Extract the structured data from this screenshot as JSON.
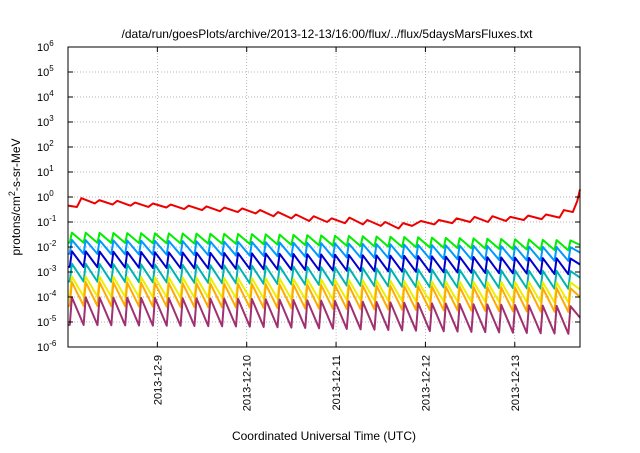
{
  "chart_data": {
    "type": "line",
    "title": "/data/run/goesPlots/archive/2013-12-13/16:00/flux/../flux/5daysMarsFluxes.txt",
    "xlabel": "Coordinated Universal Time (UTC)",
    "ylabel": {
      "prefix": "protons/cm",
      "sup": "2",
      "suffix": "-s-sr-MeV"
    },
    "xaxis": {
      "min": 0,
      "max": 5.73,
      "ticks": [
        {
          "x": 1.0,
          "label": "2013-12-9"
        },
        {
          "x": 2.0,
          "label": "2013-12-10"
        },
        {
          "x": 3.0,
          "label": "2013-12-11"
        },
        {
          "x": 4.0,
          "label": "2013-12-12"
        },
        {
          "x": 5.0,
          "label": "2013-12-13"
        }
      ]
    },
    "yaxis": {
      "scale": "log",
      "min_exp": -6,
      "max_exp": 6,
      "tick_exponents": [
        -6,
        -5,
        -4,
        -3,
        -2,
        -1,
        0,
        1,
        2,
        3,
        4,
        5,
        6
      ],
      "tick_base": "10"
    },
    "grid": true,
    "series": [
      {
        "color": "#ee0000",
        "width": 2,
        "points": [
          [
            0,
            0.45
          ],
          [
            0.1,
            0.4
          ],
          [
            0.15,
            0.9
          ],
          [
            0.3,
            0.55
          ],
          [
            0.35,
            0.75
          ],
          [
            0.5,
            0.5
          ],
          [
            0.55,
            0.7
          ],
          [
            0.7,
            0.45
          ],
          [
            0.75,
            0.6
          ],
          [
            0.9,
            0.4
          ],
          [
            0.95,
            0.55
          ],
          [
            1.1,
            0.38
          ],
          [
            1.15,
            0.5
          ],
          [
            1.3,
            0.33
          ],
          [
            1.35,
            0.45
          ],
          [
            1.5,
            0.3
          ],
          [
            1.55,
            0.42
          ],
          [
            1.7,
            0.27
          ],
          [
            1.75,
            0.38
          ],
          [
            1.9,
            0.25
          ],
          [
            1.95,
            0.35
          ],
          [
            2.1,
            0.22
          ],
          [
            2.15,
            0.3
          ],
          [
            2.3,
            0.17
          ],
          [
            2.35,
            0.25
          ],
          [
            2.5,
            0.14
          ],
          [
            2.55,
            0.2
          ],
          [
            2.7,
            0.11
          ],
          [
            2.75,
            0.17
          ],
          [
            2.9,
            0.1
          ],
          [
            2.95,
            0.14
          ],
          [
            3.1,
            0.09
          ],
          [
            3.15,
            0.15
          ],
          [
            3.3,
            0.08
          ],
          [
            3.35,
            0.12
          ],
          [
            3.5,
            0.07
          ],
          [
            3.55,
            0.1
          ],
          [
            3.7,
            0.055
          ],
          [
            3.75,
            0.09
          ],
          [
            3.85,
            0.07
          ],
          [
            3.95,
            0.11
          ],
          [
            4.1,
            0.08
          ],
          [
            4.15,
            0.12
          ],
          [
            4.3,
            0.09
          ],
          [
            4.35,
            0.14
          ],
          [
            4.5,
            0.1
          ],
          [
            4.55,
            0.16
          ],
          [
            4.7,
            0.1
          ],
          [
            4.75,
            0.17
          ],
          [
            4.9,
            0.11
          ],
          [
            4.95,
            0.16
          ],
          [
            5.1,
            0.12
          ],
          [
            5.15,
            0.18
          ],
          [
            5.3,
            0.13
          ],
          [
            5.35,
            0.2
          ],
          [
            5.5,
            0.15
          ],
          [
            5.55,
            0.3
          ],
          [
            5.65,
            0.25
          ],
          [
            5.7,
            0.7
          ],
          [
            5.73,
            2.0
          ]
        ]
      },
      {
        "color": "#00ee00",
        "width": 2,
        "period": 0.155,
        "start": 0.02,
        "trend": [
          [
            0,
            0.025
          ],
          [
            2,
            0.022
          ],
          [
            4,
            0.016
          ],
          [
            5.73,
            0.012
          ]
        ],
        "peak_factor": 1.5,
        "trough_factor": 0.6
      },
      {
        "color": "#0099ff",
        "width": 2,
        "period": 0.155,
        "start": 0.02,
        "trend": [
          [
            0,
            0.012
          ],
          [
            2,
            0.01
          ],
          [
            4,
            0.0075
          ],
          [
            5.73,
            0.006
          ]
        ],
        "peak_factor": 1.6,
        "trough_factor": 0.45
      },
      {
        "color": "#0000cc",
        "width": 2,
        "period": 0.155,
        "start": 0.02,
        "trend": [
          [
            0,
            0.004
          ],
          [
            2,
            0.0033
          ],
          [
            4,
            0.0025
          ],
          [
            5.73,
            0.002
          ]
        ],
        "peak_factor": 1.7,
        "trough_factor": 0.4
      },
      {
        "color": "#00b3b3",
        "width": 2,
        "period": 0.155,
        "start": 0.02,
        "trend": [
          [
            0,
            0.0012
          ],
          [
            2,
            0.001
          ],
          [
            4,
            0.0007
          ],
          [
            5.73,
            0.0006
          ]
        ],
        "peak_factor": 1.8,
        "trough_factor": 0.35
      },
      {
        "color": "#eeee00",
        "width": 2,
        "period": 0.155,
        "start": 0.02,
        "trend": [
          [
            0,
            0.00035
          ],
          [
            2,
            0.0003
          ],
          [
            4,
            0.00022
          ],
          [
            5.73,
            0.0002
          ]
        ],
        "peak_factor": 1.9,
        "trough_factor": 0.3
      },
      {
        "color": "#ffaa00",
        "width": 2,
        "period": 0.155,
        "start": 0.02,
        "trend": [
          [
            0,
            0.00018
          ],
          [
            2,
            0.00015
          ],
          [
            4,
            0.00012
          ],
          [
            5.73,
            0.0001
          ]
        ],
        "peak_factor": 2.2,
        "trough_factor": 0.25
      },
      {
        "color": "#a03070",
        "width": 2,
        "period": 0.155,
        "start": 0.02,
        "trend": [
          [
            0,
            3.5e-05
          ],
          [
            2,
            3e-05
          ],
          [
            4,
            2e-05
          ],
          [
            5.73,
            1.5e-05
          ]
        ],
        "peak_factor": 2.8,
        "trough_factor": 0.22
      }
    ]
  }
}
